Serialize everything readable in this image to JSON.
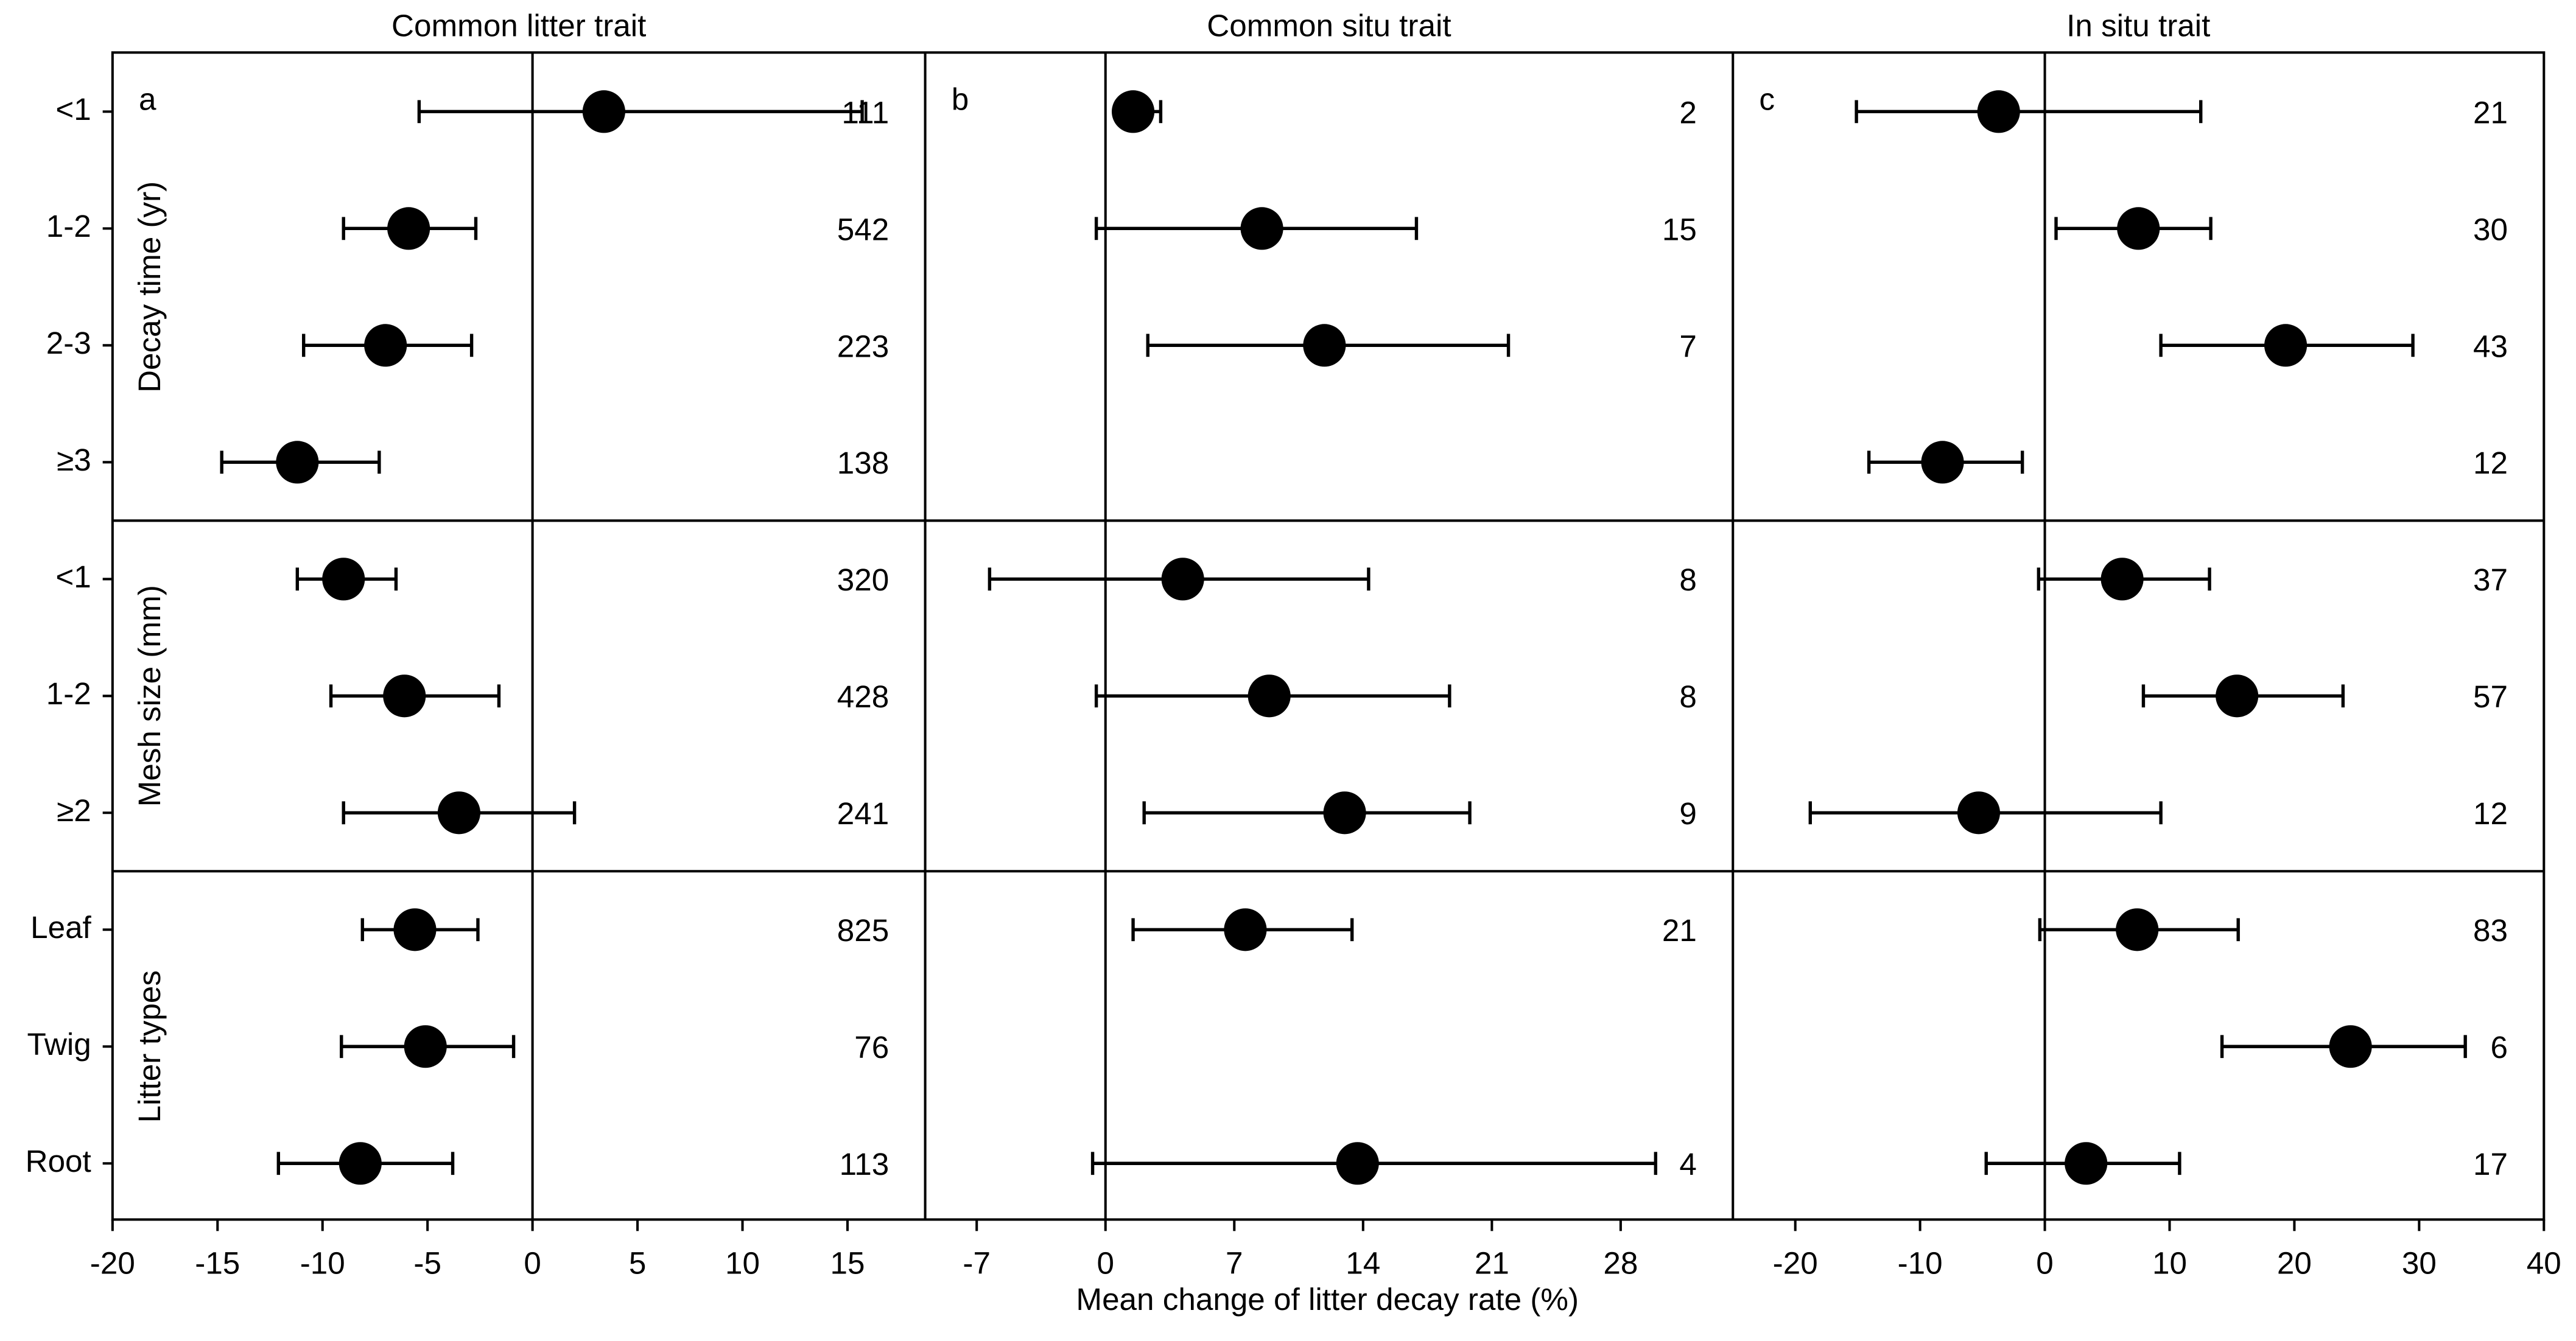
{
  "chart_data": {
    "type": "forest",
    "x_label": "Mean change of litter decay rate (%)",
    "groups": [
      {
        "name": "Decay time (yr)",
        "categories": [
          "<1",
          "1-2",
          "2-3",
          "≥3"
        ]
      },
      {
        "name": "Mesh size (mm)",
        "categories": [
          "<1",
          "1-2",
          "≥2"
        ]
      },
      {
        "name": "Litter types",
        "categories": [
          "Leaf",
          "Twig",
          "Root"
        ]
      }
    ],
    "panels": [
      {
        "title": "Common litter trait",
        "label": "a",
        "xlim": [
          -20,
          18.7
        ],
        "xticks": [
          -20,
          -15,
          -10,
          -5,
          0,
          5,
          10,
          15
        ],
        "mean": [
          3.4,
          -5.9,
          -7.0,
          -11.2,
          -9.0,
          -6.1,
          -3.5,
          -5.6,
          -5.1,
          -8.2
        ],
        "lower": [
          -5.4,
          -9.0,
          -10.9,
          -14.8,
          -11.2,
          -9.6,
          -9.0,
          -8.1,
          -9.1,
          -12.1
        ],
        "upper": [
          15.7,
          -2.7,
          -2.9,
          -7.3,
          -6.5,
          -1.6,
          2.0,
          -2.6,
          -0.9,
          -3.8
        ],
        "n": [
          111,
          542,
          223,
          138,
          320,
          428,
          241,
          825,
          76,
          113
        ]
      },
      {
        "title": "Common situ trait",
        "label": "b",
        "xlim": [
          -9.8,
          34.1
        ],
        "xticks": [
          -7,
          0,
          7,
          14,
          21,
          28
        ],
        "mean": [
          1.5,
          8.5,
          11.9,
          null,
          4.2,
          8.9,
          13.0,
          7.6,
          null,
          13.7
        ],
        "lower": [
          0.8,
          -0.5,
          2.3,
          null,
          -6.3,
          -0.5,
          2.1,
          1.5,
          null,
          -0.7
        ],
        "upper": [
          3.0,
          16.9,
          21.9,
          null,
          14.3,
          18.7,
          19.8,
          13.4,
          null,
          29.9
        ],
        "n": [
          2,
          15,
          7,
          null,
          8,
          8,
          9,
          21,
          null,
          4
        ]
      },
      {
        "title": "In situ trait",
        "label": "c",
        "xlim": [
          -25,
          40
        ],
        "xticks": [
          -20,
          -10,
          0,
          10,
          20,
          30,
          40
        ],
        "mean": [
          -3.7,
          7.5,
          19.3,
          -8.2,
          6.2,
          15.4,
          -5.3,
          7.4,
          24.5,
          3.3
        ],
        "lower": [
          -15.1,
          0.9,
          9.3,
          -14.1,
          -0.5,
          7.9,
          -18.8,
          -0.4,
          14.2,
          -4.7
        ],
        "upper": [
          12.5,
          13.3,
          29.5,
          -1.8,
          13.2,
          23.9,
          9.3,
          15.5,
          33.7,
          10.8
        ],
        "n": [
          21,
          30,
          43,
          12,
          37,
          57,
          12,
          83,
          6,
          17
        ]
      }
    ]
  }
}
